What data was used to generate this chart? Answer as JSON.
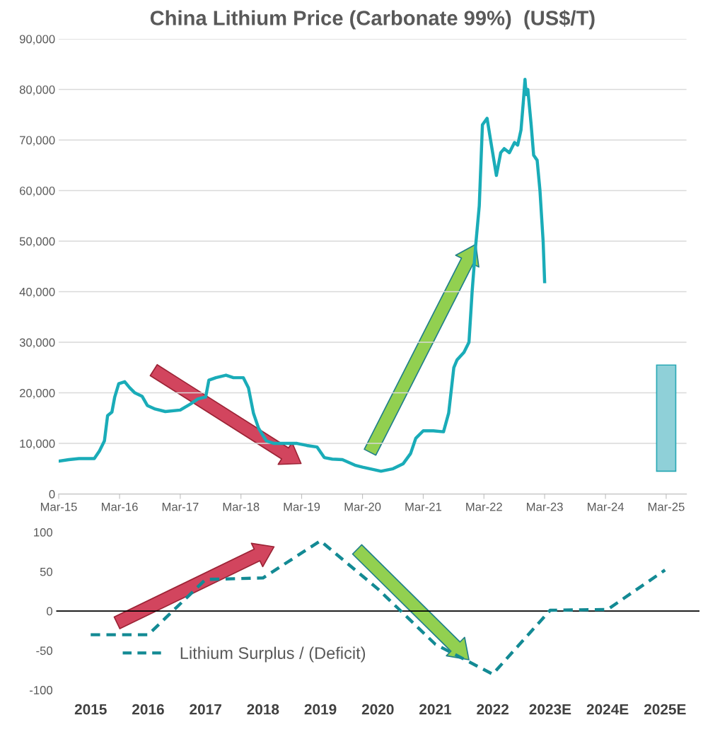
{
  "chart_data": [
    {
      "type": "line",
      "title": "China Lithium Price (Carbonate 99%)  (US$/T)",
      "series": [
        {
          "type": "line",
          "color": "#1aacb8",
          "x": [
            "2015-03-01",
            "2015-05-01",
            "2015-07-01",
            "2015-10-01",
            "2015-11-01",
            "2015-12-01",
            "2015-12-20",
            "2016-01-15",
            "2016-02-01",
            "2016-02-25",
            "2016-04-01",
            "2016-05-01",
            "2016-06-01",
            "2016-07-15",
            "2016-08-15",
            "2016-10-01",
            "2016-12-01",
            "2017-03-01",
            "2017-05-01",
            "2017-06-15",
            "2017-08-01",
            "2017-08-20",
            "2017-10-01",
            "2017-12-01",
            "2018-01-15",
            "2018-03-15",
            "2018-04-15",
            "2018-05-15",
            "2018-06-15",
            "2018-08-01",
            "2018-09-15",
            "2018-12-01",
            "2019-02-01",
            "2019-04-01",
            "2019-06-01",
            "2019-07-15",
            "2019-09-01",
            "2019-11-01",
            "2020-01-15",
            "2020-03-01",
            "2020-06-20",
            "2020-09-01",
            "2020-11-01",
            "2020-12-15",
            "2021-01-15",
            "2021-03-01",
            "2021-05-01",
            "2021-07-01",
            "2021-08-01",
            "2021-09-01",
            "2021-09-20",
            "2021-11-01",
            "2021-12-01",
            "2021-12-20",
            "2022-01-10",
            "2022-02-01",
            "2022-02-20",
            "2022-03-20",
            "2022-04-10",
            "2022-05-15",
            "2022-06-10",
            "2022-07-01",
            "2022-08-01",
            "2022-09-01",
            "2022-09-20",
            "2022-10-10",
            "2022-10-25",
            "2022-11-03",
            "2022-11-10",
            "2022-11-20",
            "2022-12-10",
            "2022-12-25",
            "2023-01-15",
            "2023-02-01",
            "2023-02-20",
            "2023-03-01"
          ],
          "values": [
            6500,
            6800,
            7000,
            7000,
            8500,
            10500,
            15500,
            16200,
            19200,
            21800,
            22200,
            21000,
            20000,
            19300,
            17500,
            16800,
            16300,
            16600,
            17800,
            18800,
            19200,
            22500,
            23000,
            23500,
            23000,
            23000,
            21000,
            16000,
            13000,
            10500,
            10000,
            10000,
            10000,
            9600,
            9300,
            7200,
            6900,
            6800,
            5700,
            5300,
            4500,
            5000,
            6000,
            8000,
            11000,
            12500,
            12500,
            12300,
            16000,
            25000,
            26500,
            28000,
            30000,
            40000,
            49000,
            57000,
            73000,
            74300,
            70000,
            63000,
            67500,
            68300,
            67500,
            69500,
            69000,
            72000,
            78000,
            82000,
            79000,
            80000,
            73000,
            67000,
            66000,
            60000,
            50000,
            42000
          ]
        },
        {
          "type": "bar",
          "color": "#8fd0d8",
          "x": [
            "2025-03-01"
          ],
          "base": [
            4500
          ],
          "values": [
            21000
          ]
        }
      ],
      "xlim": [
        "2015-03-01",
        "2025-07-01"
      ],
      "xticks": [
        {
          "value": "2015-03-01",
          "label": "Mar-15"
        },
        {
          "value": "2016-03-01",
          "label": "Mar-16"
        },
        {
          "value": "2017-03-01",
          "label": "Mar-17"
        },
        {
          "value": "2018-03-01",
          "label": "Mar-18"
        },
        {
          "value": "2019-03-01",
          "label": "Mar-19"
        },
        {
          "value": "2020-03-01",
          "label": "Mar-20"
        },
        {
          "value": "2021-03-01",
          "label": "Mar-21"
        },
        {
          "value": "2022-03-01",
          "label": "Mar-22"
        },
        {
          "value": "2023-03-01",
          "label": "Mar-23"
        },
        {
          "value": "2024-03-01",
          "label": "Mar-24"
        },
        {
          "value": "2025-03-01",
          "label": "Mar-25"
        }
      ],
      "ylim": [
        0,
        90000
      ],
      "yticks": [
        0,
        {
          "value": 10000,
          "label": "10,000"
        },
        {
          "value": 20000,
          "label": "20,000"
        },
        {
          "value": 30000,
          "label": "30,000"
        },
        {
          "value": 40000,
          "label": "40,000"
        },
        {
          "value": 50000,
          "label": "50,000"
        },
        {
          "value": 60000,
          "label": "60,000"
        },
        {
          "value": 70000,
          "label": "70,000"
        },
        {
          "value": 80000,
          "label": "80,000"
        },
        {
          "value": 90000,
          "label": "90,000"
        }
      ],
      "grid": "y",
      "legend": false
    },
    {
      "type": "line",
      "categories": [
        "2015",
        "2016",
        "2017",
        "2018",
        "2019",
        "2020",
        "2021",
        "2022",
        "2023E",
        "2024E",
        "2025E"
      ],
      "series": [
        {
          "name": "Lithium Surplus / (Deficit)",
          "color": "#138a94",
          "values": [
            -30,
            -30,
            40,
            42,
            89,
            28,
            -42,
            -80,
            1,
            2,
            52
          ]
        }
      ],
      "line_style": "dashed",
      "ylim": [
        -100,
        100
      ],
      "yticks": [
        -100,
        -50,
        0,
        50,
        100
      ],
      "ref_lines": [
        {
          "axis": "y",
          "value": 0,
          "color": "#000000"
        }
      ],
      "grid": false,
      "legend": "bottom left"
    }
  ]
}
